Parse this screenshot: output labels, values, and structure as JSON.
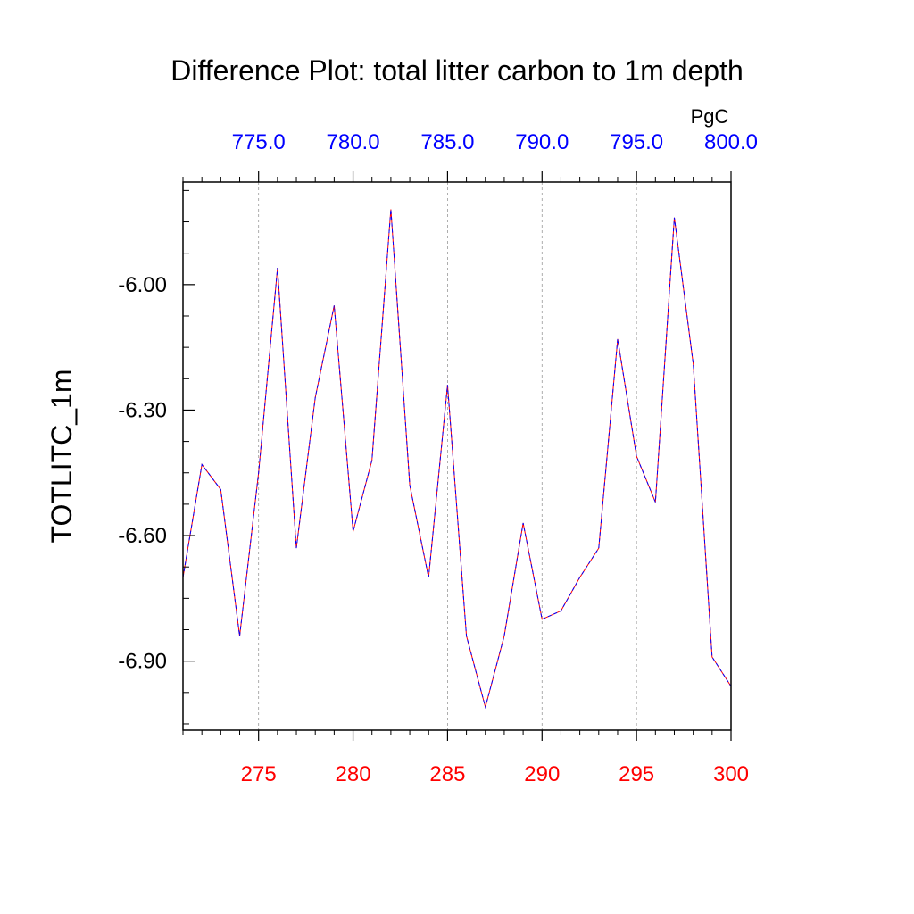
{
  "chart_data": {
    "type": "line",
    "title": "Difference Plot: total litter carbon to 1m depth",
    "ylabel": "TOTLITC_1m",
    "units": "PgC",
    "xlim": [
      271,
      300
    ],
    "ylim": [
      -7.065,
      -5.755
    ],
    "x_ticks": [
      "275",
      "280",
      "285",
      "290",
      "295",
      "300"
    ],
    "x_tick_values": [
      275,
      280,
      285,
      290,
      295,
      300
    ],
    "top_ticks": [
      "775.0",
      "780.0",
      "785.0",
      "790.0",
      "795.0",
      "800.0"
    ],
    "top_tick_values": [
      775,
      780,
      785,
      790,
      795,
      800
    ],
    "top_axis_offset": 500,
    "y_ticks": [
      "-6.00",
      "-6.30",
      "-6.60",
      "-6.90"
    ],
    "y_tick_values": [
      -6.0,
      -6.3,
      -6.6,
      -6.9
    ],
    "grid": "vertical-dashed",
    "series": [
      {
        "color_a": "#0000ff",
        "color_b": "#ff0000",
        "x": [
          271,
          272,
          273,
          274,
          275,
          276,
          277,
          278,
          279,
          280,
          281,
          282,
          283,
          284,
          285,
          286,
          287,
          288,
          289,
          290,
          291,
          292,
          293,
          294,
          295,
          296,
          297,
          298,
          299,
          300
        ],
        "y": [
          -6.7,
          -6.43,
          -6.49,
          -6.84,
          -6.45,
          -5.96,
          -6.63,
          -6.27,
          -6.05,
          -6.59,
          -6.42,
          -5.82,
          -6.48,
          -6.7,
          -6.24,
          -6.84,
          -7.01,
          -6.84,
          -6.57,
          -6.8,
          -6.78,
          -6.7,
          -6.63,
          -6.13,
          -6.41,
          -6.52,
          -5.84,
          -6.19,
          -6.89,
          -6.96
        ]
      }
    ],
    "colors": {
      "bottom_tick_labels": "#ff0000",
      "top_tick_labels": "#0000ff",
      "axis": "#000000"
    }
  }
}
